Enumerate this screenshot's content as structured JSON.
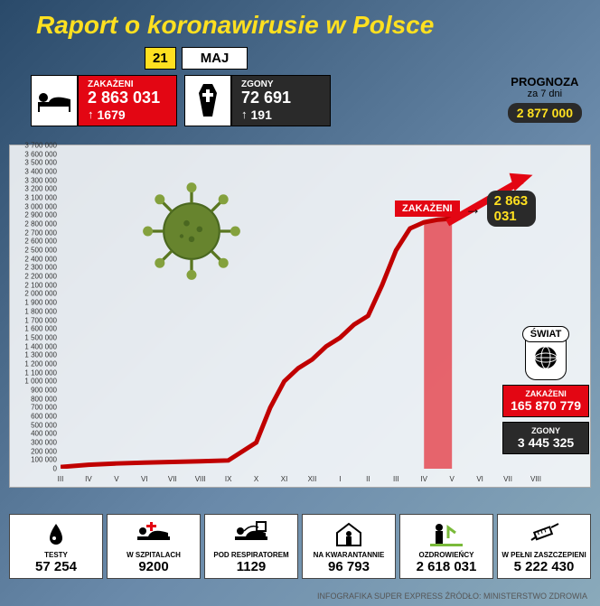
{
  "title": "Raport o koronawirusie w Polsce",
  "date": {
    "day": "21",
    "month": "MAJ"
  },
  "infected": {
    "label": "ZAKAŻENI",
    "value": "2 863 031",
    "delta": "1679"
  },
  "deaths": {
    "label": "ZGONY",
    "value": "72 691",
    "delta": "191"
  },
  "prognoza": {
    "label": "PROGNOZA",
    "sub": "za 7 dni",
    "value": "2 877 000"
  },
  "chart": {
    "type": "line",
    "y_ticks": [
      "0",
      "100 000",
      "200 000",
      "300 000",
      "400 000",
      "500 000",
      "600 000",
      "700 000",
      "800 000",
      "900 000",
      "1 000 000",
      "1 100 000",
      "1 200 000",
      "1 300 000",
      "1 400 000",
      "1 500 000",
      "1 600 000",
      "1 700 000",
      "1 800 000",
      "1 900 000",
      "2 000 000",
      "2 100 000",
      "2 200 000",
      "2 300 000",
      "2 400 000",
      "2 500 000",
      "2 600 000",
      "2 700 000",
      "2 800 000",
      "2 900 000",
      "3 000 000",
      "3 100 000",
      "3 200 000",
      "3 300 000",
      "3 400 000",
      "3 500 000",
      "3 600 000",
      "3 700 000"
    ],
    "ylim": [
      0,
      3700000
    ],
    "x_ticks": [
      "III",
      "IV",
      "V",
      "VI",
      "VII",
      "VIII",
      "IX",
      "X",
      "XI",
      "XII",
      "I",
      "II",
      "III",
      "IV",
      "V",
      "VI",
      "VII",
      "VIII"
    ],
    "line_color": "#c00000",
    "line_width": 5,
    "fill_color": "#e30613",
    "fill_opacity": 0.6,
    "background_color": "#ffffff",
    "points": [
      [
        0,
        20000
      ],
      [
        1,
        45000
      ],
      [
        2,
        60000
      ],
      [
        3,
        70000
      ],
      [
        4,
        78000
      ],
      [
        5,
        85000
      ],
      [
        6,
        95000
      ],
      [
        7,
        300000
      ],
      [
        7.5,
        700000
      ],
      [
        8,
        1000000
      ],
      [
        8.5,
        1150000
      ],
      [
        9,
        1250000
      ],
      [
        9.5,
        1400000
      ],
      [
        10,
        1500000
      ],
      [
        10.5,
        1650000
      ],
      [
        11,
        1750000
      ],
      [
        11.5,
        2100000
      ],
      [
        12,
        2500000
      ],
      [
        12.5,
        2750000
      ],
      [
        13,
        2820000
      ],
      [
        13.5,
        2850000
      ],
      [
        14,
        2863031
      ]
    ],
    "fill_start_x": 13,
    "callout": {
      "tag": "ZAKAŻENI",
      "value": "2 863 031"
    }
  },
  "world": {
    "label": "ŚWIAT",
    "infected": {
      "label": "ZAKAŻENI",
      "value": "165 870 779"
    },
    "deaths": {
      "label": "ZGONY",
      "value": "3 445 325"
    }
  },
  "bottom": [
    {
      "label": "TESTY",
      "value": "57 254",
      "icon": "drop"
    },
    {
      "label": "W SZPITALACH",
      "value": "9200",
      "icon": "hospital"
    },
    {
      "label": "POD RESPIRATOREM",
      "value": "1129",
      "icon": "respirator"
    },
    {
      "label": "NA KWARANTANNIE",
      "value": "96 793",
      "icon": "house"
    },
    {
      "label": "OZDROWIEŃCY",
      "value": "2 618 031",
      "icon": "recovered"
    },
    {
      "label": "W PEŁNI ZASZCZEPIENI",
      "value": "5 222 430",
      "icon": "syringe"
    }
  ],
  "footer": "INFOGRAFIKA SUPER EXPRESS   ŹRÓDŁO: MINISTERSTWO ZDROWIA",
  "colors": {
    "title": "#ffe020",
    "red": "#e30613",
    "black": "#2a2a2a",
    "yellow": "#ffe020"
  }
}
